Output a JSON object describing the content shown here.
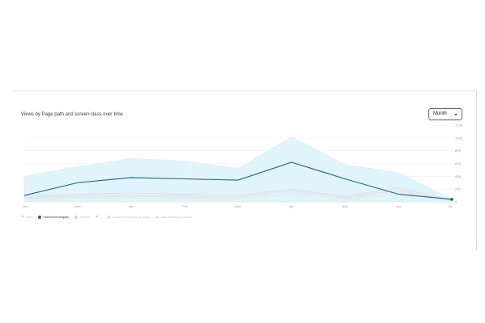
{
  "card": {
    "title": "Views by Page path and screen class over time",
    "granularity": {
      "selected": "Month",
      "icon": "caret-down-icon"
    }
  },
  "chart_data": {
    "type": "line",
    "categories": [
      "Nov",
      "Dec",
      "Jan",
      "Feb",
      "Mar",
      "Apr",
      "May",
      "Jun",
      "Jul"
    ],
    "ylim": [
      0,
      120000
    ],
    "yticks": [
      "0",
      "20K",
      "40K",
      "60K",
      "80K",
      "100K",
      "120K"
    ],
    "grid": true,
    "legend_position": "bottom-left",
    "band": {
      "name": "Total",
      "color": "#e1f3fb",
      "values": [
        40000,
        55000,
        68000,
        64000,
        52000,
        102000,
        58000,
        46000,
        4000
      ]
    },
    "series": [
      {
        "name": "/admissions/apply",
        "color": "#1f6587",
        "active": true,
        "values": [
          10000,
          30000,
          38000,
          36000,
          34000,
          62000,
          36000,
          12000,
          4000
        ]
      },
      {
        "color": "#d9d9d9",
        "active": false,
        "values": [
          9000,
          12000,
          14000,
          12000,
          10000,
          20000,
          9000,
          22000,
          3000
        ]
      },
      {
        "color": "#dcdcdc",
        "active": false,
        "values": [
          7000,
          9000,
          10000,
          9000,
          8000,
          18000,
          7000,
          18000,
          2000
        ]
      },
      {
        "color": "#e3e3e3",
        "active": false,
        "values": [
          5000,
          7000,
          8000,
          7000,
          6000,
          14000,
          6000,
          14000,
          2000
        ]
      },
      {
        "color": "#e8e8e8",
        "active": false,
        "values": [
          4000,
          5000,
          6000,
          5000,
          5000,
          10000,
          5000,
          10000,
          1000
        ]
      }
    ]
  },
  "legend": [
    {
      "label": "Total",
      "marker": "triangle-down-light"
    },
    {
      "label": "/admissions/apply",
      "marker": "dot-dark"
    },
    {
      "label": "/search",
      "marker": "dot-light"
    },
    {
      "label": "/",
      "marker": "triangle-down"
    },
    {
      "label": "/academics/areas-of-study",
      "marker": "dot-light"
    },
    {
      "label": "/about/visiting-campus",
      "marker": "triangle-up"
    }
  ]
}
